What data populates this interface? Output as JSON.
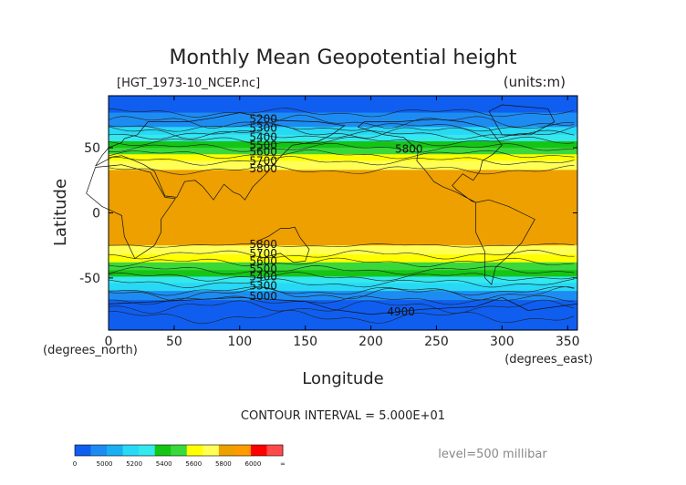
{
  "chart_data": {
    "type": "heatmap",
    "title": "Monthly Mean Geopotential height",
    "file_label": "[HGT_1973-10_NCEP.nc]",
    "units_label": "(units:m)",
    "xlabel": "Longitude",
    "ylabel": "Latitude",
    "x_unit_label": "(degrees_east)",
    "y_unit_label": "(degrees_north)",
    "xlim": [
      0,
      357.5
    ],
    "ylim": [
      -90,
      90
    ],
    "x_ticks": [
      0,
      50,
      100,
      150,
      200,
      250,
      300,
      350
    ],
    "y_ticks": [
      50,
      0,
      -50
    ],
    "contour_interval_label": "CONTOUR INTERVAL = 5.000E+01",
    "level_label": "level=500 millibar",
    "colorbar": {
      "tick_labels": [
        "0",
        "5000",
        "5200",
        "5400",
        "5600",
        "5800",
        "6000",
        "∞"
      ],
      "colors": [
        "#0f5ef0",
        "#1d8cf2",
        "#18b0f3",
        "#27d9f5",
        "#34e8ee",
        "#15c515",
        "#3ad83a",
        "#ffff00",
        "#ffff55",
        "#eda000",
        "#ff9a00",
        "#ff0000",
        "#ff4a4a"
      ]
    },
    "bands": [
      {
        "lat_top": 90,
        "lat_bottom": 77,
        "color": "#0f5ef0"
      },
      {
        "lat_top": 77,
        "lat_bottom": 66,
        "color": "#1d8cf2"
      },
      {
        "lat_top": 66,
        "lat_bottom": 60,
        "color": "#27d9f5"
      },
      {
        "lat_top": 60,
        "lat_bottom": 55,
        "color": "#34e8ee"
      },
      {
        "lat_top": 55,
        "lat_bottom": 50,
        "color": "#15c515"
      },
      {
        "lat_top": 50,
        "lat_bottom": 45,
        "color": "#3ad83a"
      },
      {
        "lat_top": 45,
        "lat_bottom": 40,
        "color": "#ffff00"
      },
      {
        "lat_top": 40,
        "lat_bottom": 33,
        "color": "#ffff55"
      },
      {
        "lat_top": 33,
        "lat_bottom": -25,
        "color": "#eda000"
      },
      {
        "lat_top": -25,
        "lat_bottom": -32,
        "color": "#ffff55"
      },
      {
        "lat_top": -32,
        "lat_bottom": -38,
        "color": "#ffff00"
      },
      {
        "lat_top": -38,
        "lat_bottom": -44,
        "color": "#3ad83a"
      },
      {
        "lat_top": -44,
        "lat_bottom": -49,
        "color": "#15c515"
      },
      {
        "lat_top": -49,
        "lat_bottom": -54,
        "color": "#34e8ee"
      },
      {
        "lat_top": -54,
        "lat_bottom": -60,
        "color": "#27d9f5"
      },
      {
        "lat_top": -60,
        "lat_bottom": -67,
        "color": "#1d8cf2"
      },
      {
        "lat_top": -67,
        "lat_bottom": -90,
        "color": "#0f5ef0"
      }
    ],
    "contour_labels": [
      {
        "text": "5200",
        "lon": 118,
        "lat": 72
      },
      {
        "text": "5300",
        "lon": 118,
        "lat": 65
      },
      {
        "text": "5400",
        "lon": 118,
        "lat": 58
      },
      {
        "text": "5500",
        "lon": 118,
        "lat": 52
      },
      {
        "text": "5600",
        "lon": 118,
        "lat": 47
      },
      {
        "text": "5700",
        "lon": 118,
        "lat": 40
      },
      {
        "text": "5800",
        "lon": 118,
        "lat": 34
      },
      {
        "text": "5800",
        "lon": 229,
        "lat": 49
      },
      {
        "text": "5800",
        "lon": 118,
        "lat": -24
      },
      {
        "text": "5700",
        "lon": 118,
        "lat": -31
      },
      {
        "text": "5600",
        "lon": 118,
        "lat": -37
      },
      {
        "text": "5500",
        "lon": 118,
        "lat": -43
      },
      {
        "text": "5400",
        "lon": 118,
        "lat": -49
      },
      {
        "text": "5300",
        "lon": 118,
        "lat": -56
      },
      {
        "text": "5000",
        "lon": 118,
        "lat": -64
      },
      {
        "text": "4900",
        "lon": 223,
        "lat": -76
      }
    ]
  }
}
